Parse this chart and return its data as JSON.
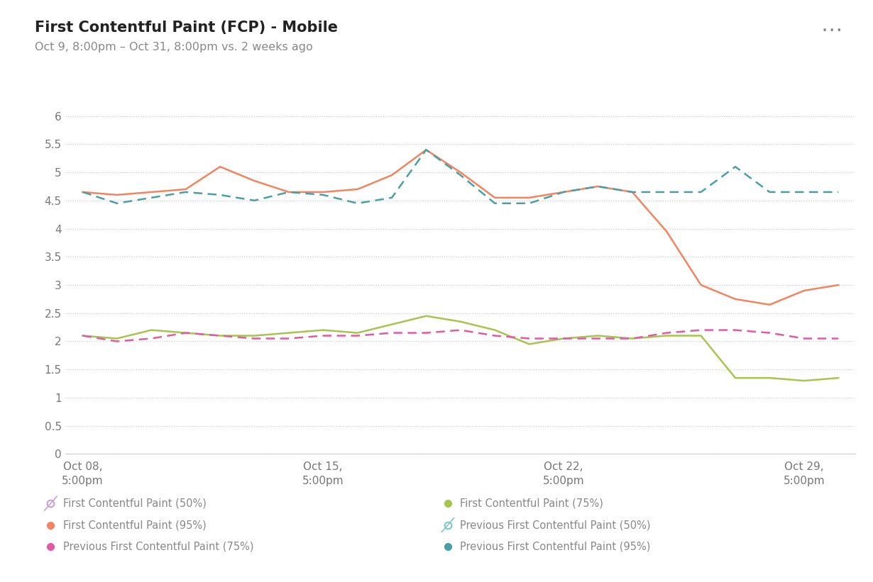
{
  "title": "First Contentful Paint (FCP) - Mobile",
  "subtitle": "Oct 9, 8:00pm – Oct 31, 8:00pm vs. 2 weeks ago",
  "background_color": "#ffffff",
  "ylim": [
    0,
    6.2
  ],
  "yticks": [
    0,
    0.5,
    1,
    1.5,
    2,
    2.5,
    3,
    3.5,
    4,
    4.5,
    5,
    5.5,
    6
  ],
  "xtick_labels": [
    "Oct 08,\n5:00pm",
    "Oct 15,\n5:00pm",
    "Oct 22,\n5:00pm",
    "Oct 29,\n5:00pm"
  ],
  "xtick_positions": [
    0,
    7,
    14,
    21
  ],
  "lines": {
    "fcp_75": {
      "label": "First Contentful Paint (75%)",
      "color": "#a8c44e",
      "linestyle": "solid",
      "linewidth": 1.8,
      "dashes": null,
      "y": [
        2.1,
        2.05,
        2.2,
        2.15,
        2.1,
        2.1,
        2.15,
        2.2,
        2.15,
        2.3,
        2.45,
        2.35,
        2.2,
        1.95,
        2.05,
        2.1,
        2.05,
        2.1,
        2.1,
        1.35,
        1.35,
        1.3,
        1.35
      ]
    },
    "fcp_95": {
      "label": "First Contentful Paint (95%)",
      "color": "#f4845f",
      "linestyle": "solid",
      "linewidth": 1.8,
      "dashes": null,
      "y": [
        4.65,
        4.6,
        4.65,
        4.7,
        5.1,
        4.85,
        4.65,
        4.65,
        4.7,
        4.95,
        5.4,
        5.0,
        4.55,
        4.55,
        4.65,
        4.75,
        4.65,
        3.95,
        3.0,
        2.75,
        2.65,
        2.9,
        3.0
      ]
    },
    "prev_fcp_75": {
      "label": "Previous First Contentful Paint (75%)",
      "color": "#e05ca0",
      "linestyle": "dashed",
      "linewidth": 1.8,
      "dashes": [
        5,
        3
      ],
      "y": [
        2.1,
        2.0,
        2.05,
        2.15,
        2.1,
        2.05,
        2.05,
        2.1,
        2.1,
        2.15,
        2.15,
        2.2,
        2.1,
        2.05,
        2.05,
        2.05,
        2.05,
        2.15,
        2.2,
        2.2,
        2.15,
        2.05,
        2.05
      ]
    },
    "prev_fcp_95": {
      "label": "Previous First Contentful Paint (95%)",
      "color": "#4a9fa5",
      "linestyle": "dashed",
      "linewidth": 1.8,
      "dashes": [
        5,
        3
      ],
      "y": [
        4.65,
        4.45,
        4.55,
        4.65,
        4.6,
        4.5,
        4.65,
        4.6,
        4.45,
        4.55,
        5.4,
        4.95,
        4.45,
        4.45,
        4.65,
        4.75,
        4.65,
        4.65,
        4.65,
        5.1,
        4.65,
        4.65,
        4.65
      ]
    }
  },
  "legend_items_col1": [
    {
      "label": "First Contentful Paint (50%)",
      "color": "#c9a0dc",
      "linestyle": "solid",
      "empty": true
    },
    {
      "label": "First Contentful Paint (95%)",
      "color": "#f4845f",
      "linestyle": "solid",
      "empty": false
    },
    {
      "label": "Previous First Contentful Paint (75%)",
      "color": "#e05ca0",
      "linestyle": "dashed",
      "empty": false
    }
  ],
  "legend_items_col2": [
    {
      "label": "First Contentful Paint (75%)",
      "color": "#a8c44e",
      "linestyle": "solid",
      "empty": false
    },
    {
      "label": "Previous First Contentful Paint (50%)",
      "color": "#7ec8c8",
      "linestyle": "dashed",
      "empty": true
    },
    {
      "label": "Previous First Contentful Paint (95%)",
      "color": "#4a9fa5",
      "linestyle": "dashed",
      "empty": false
    }
  ],
  "ellipsis_color": "#888888"
}
